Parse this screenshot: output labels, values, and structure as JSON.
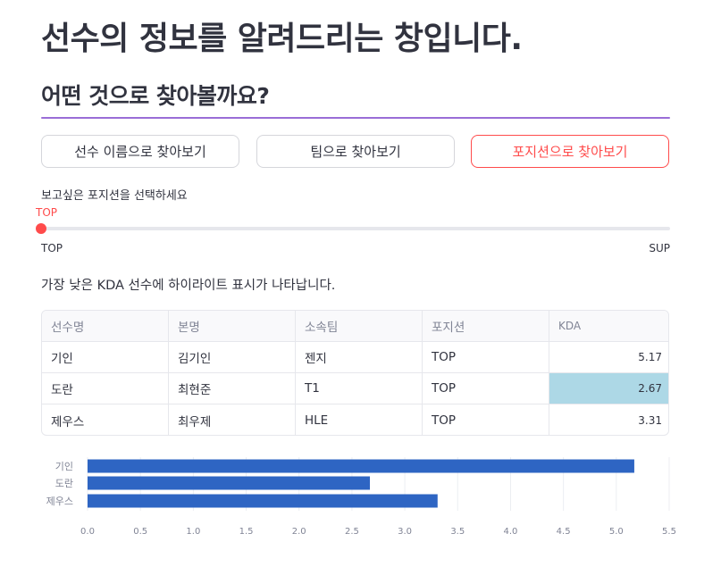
{
  "title": "선수의 정보를 알려드리는 창입니다.",
  "subtitle": "어떤 것으로 찾아볼까요?",
  "buttons": [
    {
      "label": "선수 이름으로 찾아보기",
      "active": false
    },
    {
      "label": "팀으로 찾아보기",
      "active": false
    },
    {
      "label": "포지션으로 찾아보기",
      "active": true
    }
  ],
  "slider": {
    "label": "보고싶은 포지션을 선택하세요",
    "value": "TOP",
    "min_label": "TOP",
    "max_label": "SUP"
  },
  "note": "가장 낮은 KDA 선수에 하이라이트 표시가 나타납니다.",
  "table": {
    "columns": [
      "선수명",
      "본명",
      "소속팀",
      "포지션",
      "KDA"
    ],
    "rows": [
      [
        "기인",
        "김기인",
        "젠지",
        "TOP",
        "5.17"
      ],
      [
        "도란",
        "최현준",
        "T1",
        "TOP",
        "2.67"
      ],
      [
        "제우스",
        "최우제",
        "HLE",
        "TOP",
        "3.31"
      ]
    ],
    "highlight_row": 1
  },
  "colors": {
    "accent": "#ff4b4b",
    "divider": "#9a6dd7",
    "highlight": "#add8e6",
    "bar": "#2e65c3"
  },
  "chart_data": {
    "type": "bar",
    "orientation": "horizontal",
    "categories": [
      "기인",
      "도란",
      "제우스"
    ],
    "values": [
      5.17,
      2.67,
      3.31
    ],
    "xlim": [
      0,
      5.5
    ],
    "xticks": [
      "0.0",
      "0.5",
      "1.0",
      "1.5",
      "2.0",
      "2.5",
      "3.0",
      "3.5",
      "4.0",
      "4.5",
      "5.0",
      "5.5"
    ],
    "grid": true
  }
}
